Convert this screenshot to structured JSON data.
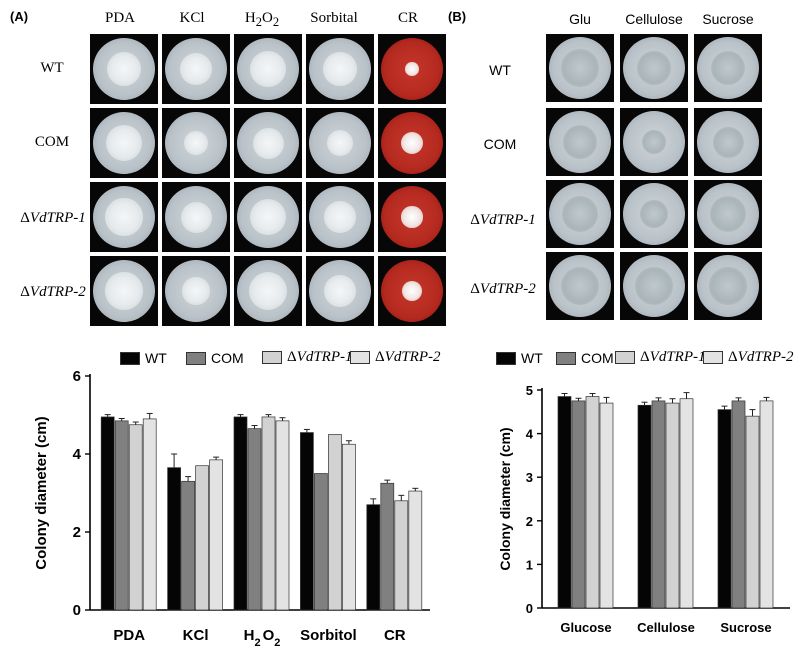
{
  "panel_a": {
    "label": "(A)",
    "columns": [
      {
        "pre": "PDA",
        "post": ""
      },
      {
        "pre": "KCl",
        "post": ""
      },
      {
        "pre": "H",
        "sub1": "2",
        "mid": "O",
        "sub2": "2"
      },
      {
        "pre": "Sorbital",
        "post": ""
      },
      {
        "pre": "CR",
        "post": ""
      }
    ],
    "rows": [
      {
        "prefix": "",
        "name": "WT"
      },
      {
        "prefix": "",
        "name": "COM"
      },
      {
        "prefix": "Δ",
        "name": "VdTRP-1"
      },
      {
        "prefix": "Δ",
        "name": "VdTRP-2"
      }
    ]
  },
  "panel_b": {
    "label": "(B)",
    "columns": [
      "Glu",
      "Cellulose",
      "Sucrose"
    ],
    "rows": [
      {
        "prefix": "",
        "name": "WT"
      },
      {
        "prefix": "",
        "name": "COM"
      },
      {
        "prefix": "Δ",
        "name": "VdTRP-1"
      },
      {
        "prefix": "Δ",
        "name": "VdTRP-2"
      }
    ]
  },
  "legend": [
    {
      "prefix": "",
      "name": "WT",
      "color": "#050505"
    },
    {
      "prefix": "",
      "name": "COM",
      "color": "#808080"
    },
    {
      "prefix": "Δ",
      "name": "VdTRP-1",
      "color": "#d2d2d2"
    },
    {
      "prefix": "Δ",
      "name": "VdTRP-2",
      "color": "#e3e3e3"
    }
  ],
  "chart_data": [
    {
      "type": "bar",
      "ylabel": "Colony diameter (cm)",
      "ylim": [
        0,
        6
      ],
      "yticks": [
        "0",
        "2",
        "4",
        "6"
      ],
      "categories": [
        "PDA",
        "KCl",
        "H2O2",
        "Sorbitol",
        "CR"
      ],
      "category_labels": [
        {
          "pre": "PDA"
        },
        {
          "pre": "KCl"
        },
        {
          "pre": "H",
          "sub1": "2",
          "mid": "O",
          "sub2": "2"
        },
        {
          "pre": "Sorbitol"
        },
        {
          "pre": "CR"
        }
      ],
      "series": [
        {
          "name": "WT",
          "color": "#050505",
          "values": [
            4.95,
            3.65,
            4.95,
            4.55,
            2.7
          ],
          "errors": [
            0.06,
            0.35,
            0.06,
            0.08,
            0.15
          ]
        },
        {
          "name": "COM",
          "color": "#808080",
          "values": [
            4.85,
            3.3,
            4.65,
            3.5,
            3.25
          ],
          "errors": [
            0.06,
            0.12,
            0.08,
            0,
            0.08
          ]
        },
        {
          "name": "ΔVdTRP-1",
          "color": "#d2d2d2",
          "values": [
            4.75,
            3.7,
            4.95,
            4.5,
            2.8
          ],
          "errors": [
            0.07,
            0,
            0.06,
            0,
            0.14
          ]
        },
        {
          "name": "ΔVdTRP-2",
          "color": "#e3e3e3",
          "values": [
            4.9,
            3.85,
            4.85,
            4.25,
            3.05
          ],
          "errors": [
            0.14,
            0.07,
            0.08,
            0.09,
            0.07
          ]
        }
      ]
    },
    {
      "type": "bar",
      "ylabel": "Colony diameter (cm)",
      "ylim": [
        0,
        5
      ],
      "yticks": [
        "0",
        "1",
        "2",
        "3",
        "4",
        "5"
      ],
      "categories": [
        "Glucose",
        "Cellulose",
        "Sucrose"
      ],
      "category_labels": [
        {
          "pre": "Glucose"
        },
        {
          "pre": "Cellulose"
        },
        {
          "pre": "Sucrose"
        }
      ],
      "series": [
        {
          "name": "WT",
          "color": "#050505",
          "values": [
            4.85,
            4.65,
            4.55
          ],
          "errors": [
            0.07,
            0.07,
            0.08
          ]
        },
        {
          "name": "COM",
          "color": "#808080",
          "values": [
            4.75,
            4.75,
            4.75
          ],
          "errors": [
            0.06,
            0.07,
            0.07
          ]
        },
        {
          "name": "ΔVdTRP-1",
          "color": "#d2d2d2",
          "values": [
            4.85,
            4.7,
            4.4
          ],
          "errors": [
            0.07,
            0.1,
            0.15
          ]
        },
        {
          "name": "ΔVdTRP-2",
          "color": "#e3e3e3",
          "values": [
            4.7,
            4.8,
            4.75
          ],
          "errors": [
            0.13,
            0.14,
            0.08
          ]
        }
      ]
    }
  ]
}
